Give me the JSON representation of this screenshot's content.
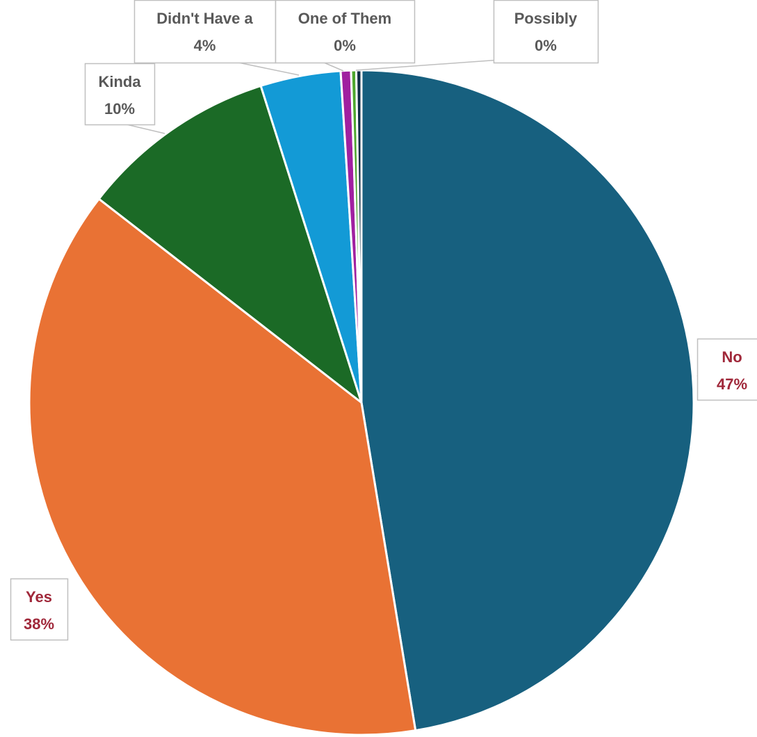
{
  "chart_data": {
    "type": "pie",
    "title": "",
    "slices": [
      {
        "label": "No",
        "value": 47.4,
        "label_text": "No",
        "pct_text": "47%",
        "color": "#17607f"
      },
      {
        "label": "Yes",
        "value": 38.1,
        "label_text": "Yes",
        "pct_text": "38%",
        "color": "#e97234"
      },
      {
        "label": "Kinda",
        "value": 9.6,
        "label_text": "Kinda",
        "pct_text": "10%",
        "color": "#1b6a26"
      },
      {
        "label": "Didn't Have a",
        "value": 3.9,
        "label_text": "Didn't Have a",
        "pct_text": "4%",
        "color": "#139ad6"
      },
      {
        "label": "One of Them",
        "value": 0.5,
        "label_text": "One of Them",
        "pct_text": "0%",
        "color": "#a020a0"
      },
      {
        "label": "",
        "value": 0.25,
        "label_text": "",
        "pct_text": "",
        "color": "#4ea72e"
      },
      {
        "label": "Possibly",
        "value": 0.25,
        "label_text": "Possibly",
        "pct_text": "0%",
        "color": "#0f2d45"
      }
    ],
    "start_angle_deg": 0,
    "direction": "clockwise",
    "legend": "none",
    "label_color_major": "#a0283a",
    "label_color_minor": "#595959"
  }
}
